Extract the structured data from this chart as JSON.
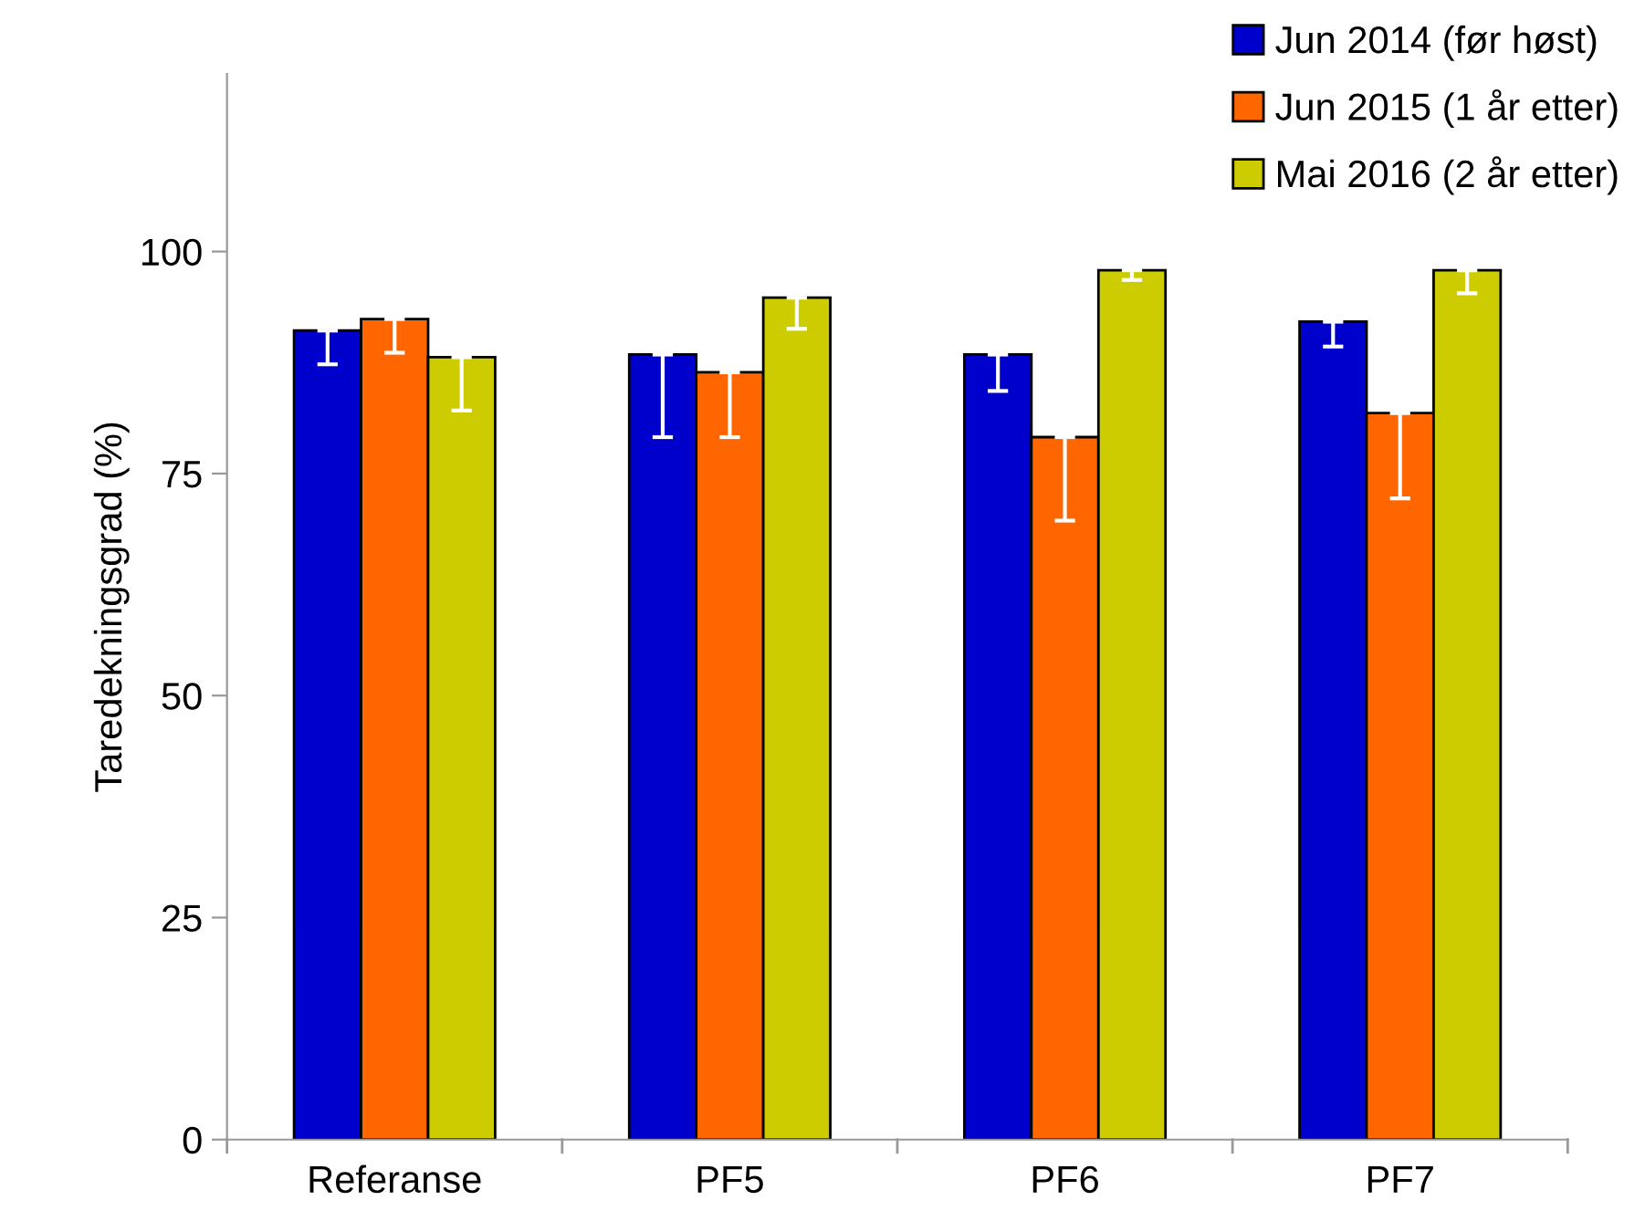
{
  "chart_data": {
    "type": "bar",
    "ylabel": "Taredekningsgrad (%)",
    "categories": [
      "Referanse",
      "PF5",
      "PF6",
      "PF7"
    ],
    "series": [
      {
        "name": "Jun 2014 (før høst)",
        "color": "#0000cc",
        "values": [
          91.1,
          88.4,
          88.4,
          92.1
        ],
        "errors": [
          [
            87.3,
            91.1
          ],
          [
            79.1,
            88.4
          ],
          [
            84.3,
            88.4
          ],
          [
            89.3,
            92.1
          ]
        ]
      },
      {
        "name": "Jun 2015 (1 år etter)",
        "color": "#ff6600",
        "values": [
          92.4,
          86.4,
          79.1,
          81.8
        ],
        "errors": [
          [
            88.6,
            92.4
          ],
          [
            79.1,
            86.4
          ],
          [
            69.7,
            79.1
          ],
          [
            72.2,
            81.8
          ]
        ]
      },
      {
        "name": "Mai 2016 (2 år etter)",
        "color": "#cccc00",
        "values": [
          88.1,
          94.8,
          97.9,
          97.9
        ],
        "errors": [
          [
            82.1,
            88.1
          ],
          [
            91.3,
            94.8
          ],
          [
            96.8,
            97.9
          ],
          [
            95.3,
            97.9
          ]
        ]
      }
    ],
    "ylim": [
      0,
      120
    ],
    "yticks": [
      0,
      25,
      50,
      75,
      100
    ],
    "grid": false,
    "legend": "top right"
  }
}
